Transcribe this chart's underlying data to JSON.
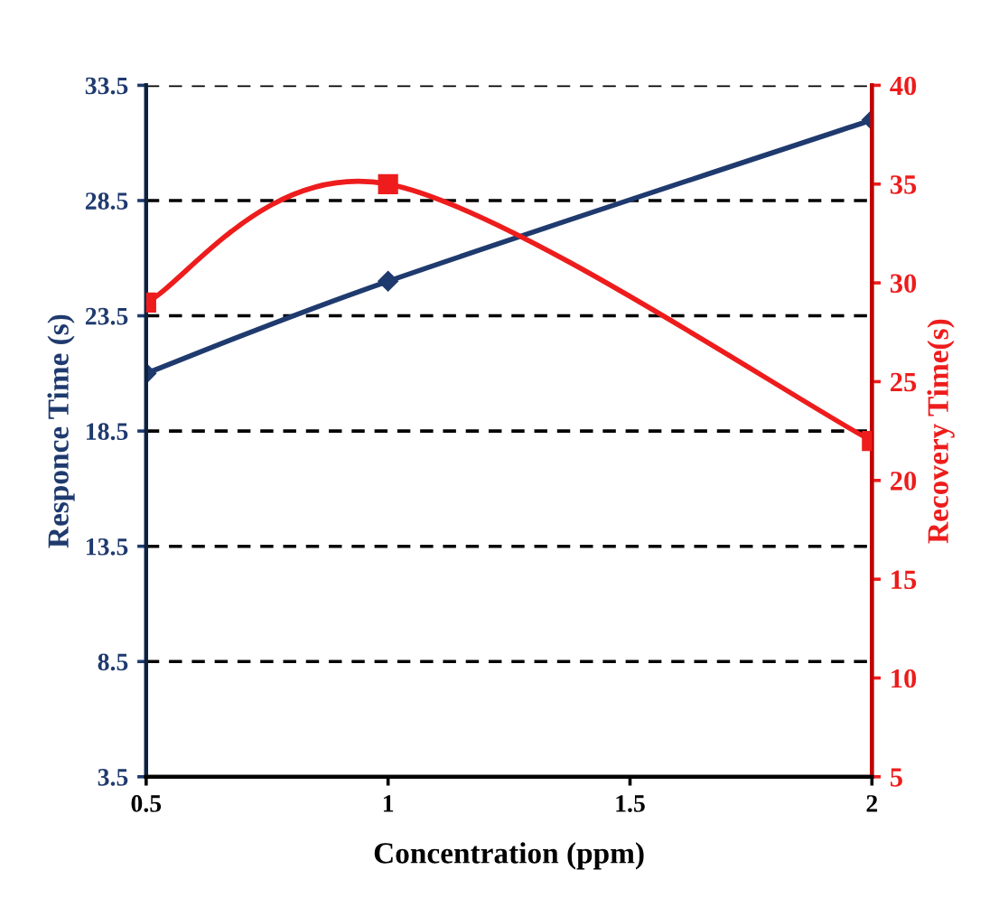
{
  "chart_data": {
    "type": "line",
    "xlabel": "Concentration (ppm)",
    "ylabel": "Responce Time (s)",
    "y2label": "Recovery Time(s)",
    "x": [
      0.5,
      1,
      2
    ],
    "series": [
      {
        "color": "#1f3a6e",
        "values": [
          21.0,
          25.0,
          32.0
        ],
        "marker": "diamond"
      },
      {
        "color": "#ee1c1c",
        "values": [
          29,
          35,
          22
        ],
        "marker": "square",
        "axis": "y2"
      }
    ],
    "xlim": [
      0.5,
      2
    ],
    "xticks": [
      0.5,
      1,
      1.5,
      2
    ],
    "ylim": [
      3.5,
      33.5
    ],
    "yticks": [
      3.5,
      8.5,
      13.5,
      18.5,
      23.5,
      28.5,
      33.5
    ],
    "y2lim": [
      5,
      40
    ],
    "y2ticks": [
      5,
      10,
      15,
      20,
      25,
      30,
      35,
      40
    ],
    "grid": "y",
    "legend": false
  }
}
